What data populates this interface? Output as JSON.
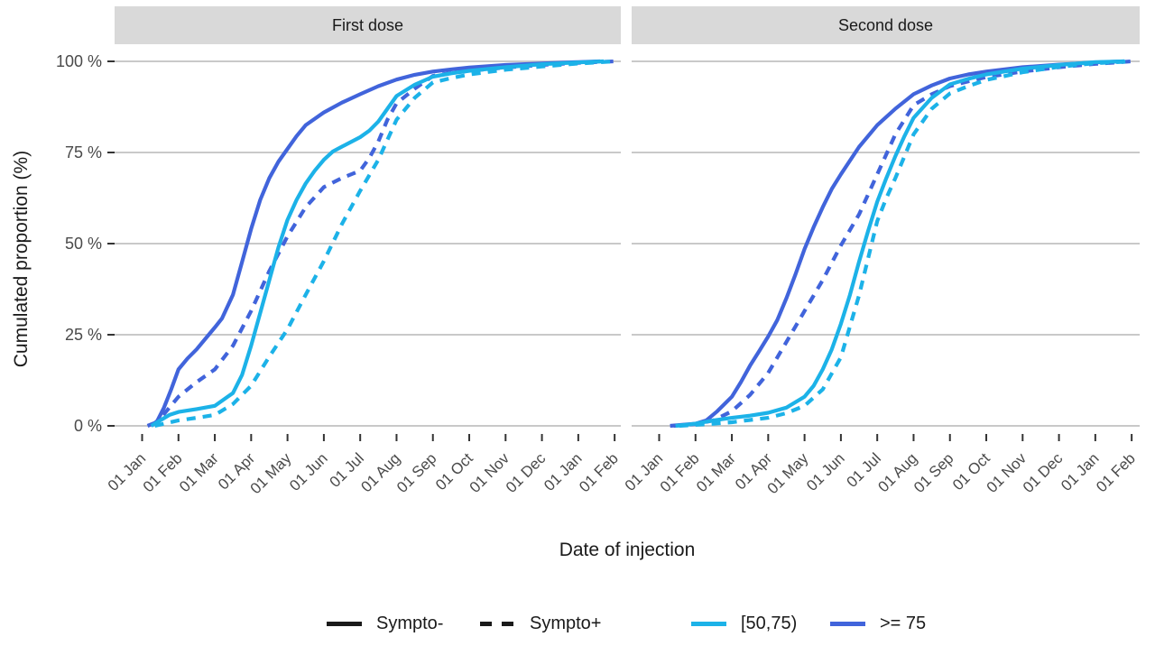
{
  "figure": {
    "background": "#ffffff",
    "strip_background": "#d9d9d9",
    "gridline_color": "#c9c9c9",
    "tick_color": "#333333",
    "tick_label_color": "#4a4a4a",
    "title_color": "#1a1a1a"
  },
  "chart_data": {
    "type": "line",
    "title": "",
    "xlabel": "Date of injection",
    "ylabel": "Cumulated proportion (%)",
    "ylim": [
      0,
      100
    ],
    "grid": "horizontal-only",
    "legend_position": "bottom",
    "x_unit": "months since 01 Jan (0 = 01 Jan, 13 = 01 Feb of next year)",
    "x_tick_labels": [
      "01 Jan",
      "01 Feb",
      "01 Mar",
      "01 Apr",
      "01 May",
      "01 Jun",
      "01 Jul",
      "01 Aug",
      "01 Sep",
      "01 Oct",
      "01 Nov",
      "01 Dec",
      "01 Jan",
      "01 Feb"
    ],
    "y_tick_labels": [
      "100 %",
      "75 %",
      "50 %",
      "25 %",
      "0 %"
    ],
    "y_tick_values": [
      100,
      75,
      50,
      25,
      0
    ],
    "colors": {
      "age_50_75": "#1cb2e8",
      "age_ge_75": "#4164db",
      "linetype_black": "#1a1a1a"
    },
    "legend": {
      "linetype": [
        {
          "label": "Sympto-",
          "dash": "solid"
        },
        {
          "label": "Sympto+",
          "dash": "dashed"
        }
      ],
      "color": [
        {
          "label": "[50,75)",
          "color": "#1cb2e8"
        },
        {
          "label": ">= 75",
          "color": "#4164db"
        }
      ]
    },
    "facets": [
      {
        "label": "First dose",
        "series": [
          {
            "name": ">= 75 | Sympto-",
            "color": "#4164db",
            "dash": "solid",
            "points": [
              [
                0.15,
                0
              ],
              [
                0.4,
                1
              ],
              [
                0.6,
                5
              ],
              [
                0.8,
                10
              ],
              [
                1,
                15.5
              ],
              [
                1.25,
                18.5
              ],
              [
                1.5,
                21
              ],
              [
                1.75,
                24
              ],
              [
                2,
                27
              ],
              [
                2.2,
                29.5
              ],
              [
                2.5,
                36
              ],
              [
                2.75,
                45
              ],
              [
                3,
                54
              ],
              [
                3.25,
                62
              ],
              [
                3.5,
                68
              ],
              [
                3.75,
                72.5
              ],
              [
                4,
                76
              ],
              [
                4.25,
                79.5
              ],
              [
                4.5,
                82.5
              ],
              [
                5,
                86
              ],
              [
                5.5,
                88.7
              ],
              [
                6,
                91
              ],
              [
                6.5,
                93.2
              ],
              [
                7,
                95
              ],
              [
                7.5,
                96.3
              ],
              [
                8,
                97.2
              ],
              [
                8.5,
                97.8
              ],
              [
                9,
                98.3
              ],
              [
                10,
                99
              ],
              [
                11,
                99.4
              ],
              [
                12,
                99.8
              ],
              [
                12.6,
                100
              ]
            ]
          },
          {
            "name": ">= 75 | Sympto+",
            "color": "#4164db",
            "dash": "dashed",
            "points": [
              [
                0.25,
                0
              ],
              [
                0.5,
                2
              ],
              [
                0.75,
                5
              ],
              [
                1,
                8
              ],
              [
                1.5,
                12
              ],
              [
                2,
                15.5
              ],
              [
                2.5,
                22
              ],
              [
                3,
                31.5
              ],
              [
                3.5,
                42.5
              ],
              [
                4,
                52
              ],
              [
                4.5,
                60
              ],
              [
                5,
                65.5
              ],
              [
                5.5,
                68
              ],
              [
                6,
                70
              ],
              [
                6.25,
                73.5
              ],
              [
                6.5,
                78
              ],
              [
                6.75,
                84
              ],
              [
                7,
                88.5
              ],
              [
                7.5,
                92.5
              ],
              [
                8,
                96
              ],
              [
                8.5,
                96.8
              ],
              [
                9,
                97.4
              ],
              [
                10,
                98.3
              ],
              [
                11,
                99
              ],
              [
                12,
                99.6
              ],
              [
                13,
                100
              ]
            ]
          },
          {
            "name": "[50,75) | Sympto-",
            "color": "#1cb2e8",
            "dash": "solid",
            "points": [
              [
                0.25,
                0
              ],
              [
                0.5,
                1.5
              ],
              [
                0.75,
                3
              ],
              [
                1,
                3.8
              ],
              [
                1.5,
                4.6
              ],
              [
                2,
                5.5
              ],
              [
                2.5,
                9
              ],
              [
                2.75,
                14
              ],
              [
                3,
                22
              ],
              [
                3.25,
                31
              ],
              [
                3.5,
                40
              ],
              [
                3.75,
                49
              ],
              [
                4,
                56.5
              ],
              [
                4.25,
                62
              ],
              [
                4.5,
                66.5
              ],
              [
                4.75,
                70
              ],
              [
                5,
                73
              ],
              [
                5.25,
                75.3
              ],
              [
                5.5,
                76.6
              ],
              [
                6,
                79.2
              ],
              [
                6.25,
                81
              ],
              [
                6.5,
                83.5
              ],
              [
                6.75,
                87
              ],
              [
                7,
                90.5
              ],
              [
                7.5,
                93.6
              ],
              [
                8,
                95.8
              ],
              [
                8.5,
                96.7
              ],
              [
                9,
                97.4
              ],
              [
                10,
                98.4
              ],
              [
                11,
                99.2
              ],
              [
                12,
                99.7
              ],
              [
                12.7,
                100
              ]
            ]
          },
          {
            "name": "[50,75) | Sympto+",
            "color": "#1cb2e8",
            "dash": "dashed",
            "points": [
              [
                0.35,
                0
              ],
              [
                1,
                1.5
              ],
              [
                1.5,
                2.2
              ],
              [
                2,
                3
              ],
              [
                2.5,
                6
              ],
              [
                3,
                11
              ],
              [
                3.5,
                19
              ],
              [
                4,
                26.5
              ],
              [
                4.5,
                36
              ],
              [
                5,
                45.2
              ],
              [
                5.5,
                55.4
              ],
              [
                6,
                64.5
              ],
              [
                6.5,
                73
              ],
              [
                7,
                84
              ],
              [
                7.5,
                90
              ],
              [
                8,
                94.2
              ],
              [
                8.5,
                95.4
              ],
              [
                9,
                96.4
              ],
              [
                10,
                97.7
              ],
              [
                11,
                98.6
              ],
              [
                12,
                99.4
              ],
              [
                13,
                100
              ]
            ]
          }
        ]
      },
      {
        "label": "Second dose",
        "series": [
          {
            "name": ">= 75 | Sympto-",
            "color": "#4164db",
            "dash": "solid",
            "points": [
              [
                0.3,
                0
              ],
              [
                1,
                0.6
              ],
              [
                1.3,
                1.5
              ],
              [
                1.6,
                4
              ],
              [
                1.8,
                6
              ],
              [
                2,
                8
              ],
              [
                2.25,
                12
              ],
              [
                2.5,
                16.5
              ],
              [
                2.75,
                20.5
              ],
              [
                3,
                24.5
              ],
              [
                3.25,
                29
              ],
              [
                3.5,
                35
              ],
              [
                3.75,
                41.5
              ],
              [
                4,
                48.5
              ],
              [
                4.25,
                54.5
              ],
              [
                4.5,
                60
              ],
              [
                4.75,
                65
              ],
              [
                5,
                69
              ],
              [
                5.5,
                76.5
              ],
              [
                6,
                82.5
              ],
              [
                6.5,
                87
              ],
              [
                7,
                91
              ],
              [
                7.5,
                93.4
              ],
              [
                8,
                95.3
              ],
              [
                8.5,
                96.4
              ],
              [
                9,
                97.2
              ],
              [
                10,
                98.4
              ],
              [
                11,
                99.1
              ],
              [
                12,
                99.7
              ],
              [
                12.8,
                100
              ]
            ]
          },
          {
            "name": ">= 75 | Sympto+",
            "color": "#4164db",
            "dash": "dashed",
            "points": [
              [
                0.4,
                0
              ],
              [
                1,
                0.5
              ],
              [
                1.5,
                1.5
              ],
              [
                2,
                4
              ],
              [
                2.5,
                8.5
              ],
              [
                3,
                14.5
              ],
              [
                3.5,
                23
              ],
              [
                4,
                31.5
              ],
              [
                4.5,
                40
              ],
              [
                5,
                49.5
              ],
              [
                5.5,
                58
              ],
              [
                6,
                69
              ],
              [
                6.5,
                80
              ],
              [
                7,
                88
              ],
              [
                7.5,
                91
              ],
              [
                8,
                93.2
              ],
              [
                8.5,
                94.5
              ],
              [
                9,
                95.7
              ],
              [
                10,
                97.2
              ],
              [
                11,
                98.4
              ],
              [
                12,
                99.3
              ],
              [
                13,
                100
              ]
            ]
          },
          {
            "name": "[50,75) | Sympto-",
            "color": "#1cb2e8",
            "dash": "solid",
            "points": [
              [
                0.45,
                0
              ],
              [
                1,
                0.6
              ],
              [
                1.5,
                1.5
              ],
              [
                2,
                2.2
              ],
              [
                2.5,
                2.8
              ],
              [
                3,
                3.6
              ],
              [
                3.5,
                5
              ],
              [
                4,
                8
              ],
              [
                4.25,
                11
              ],
              [
                4.5,
                15.5
              ],
              [
                4.75,
                21
              ],
              [
                5,
                28
              ],
              [
                5.25,
                36
              ],
              [
                5.5,
                45
              ],
              [
                5.75,
                53.5
              ],
              [
                6,
                61.5
              ],
              [
                6.25,
                68
              ],
              [
                6.5,
                74
              ],
              [
                6.75,
                79.5
              ],
              [
                7,
                84.5
              ],
              [
                7.5,
                90
              ],
              [
                8,
                93.7
              ],
              [
                8.5,
                95.2
              ],
              [
                9,
                96.4
              ],
              [
                10,
                98
              ],
              [
                11,
                99
              ],
              [
                12,
                99.8
              ],
              [
                12.8,
                100
              ]
            ]
          },
          {
            "name": "[50,75) | Sympto+",
            "color": "#1cb2e8",
            "dash": "dashed",
            "points": [
              [
                0.55,
                0
              ],
              [
                1.5,
                0.6
              ],
              [
                2,
                1
              ],
              [
                2.5,
                1.6
              ],
              [
                3,
                2.2
              ],
              [
                3.5,
                3.5
              ],
              [
                4,
                5.5
              ],
              [
                4.5,
                10
              ],
              [
                5,
                18.8
              ],
              [
                5.5,
                35.8
              ],
              [
                6,
                56.2
              ],
              [
                6.25,
                62.5
              ],
              [
                6.5,
                68
              ],
              [
                7,
                80
              ],
              [
                7.5,
                87
              ],
              [
                8,
                91.2
              ],
              [
                8.5,
                93.2
              ],
              [
                9,
                94.9
              ],
              [
                10,
                97
              ],
              [
                11,
                98.5
              ],
              [
                12,
                99.5
              ],
              [
                13,
                100
              ]
            ]
          }
        ]
      }
    ]
  }
}
